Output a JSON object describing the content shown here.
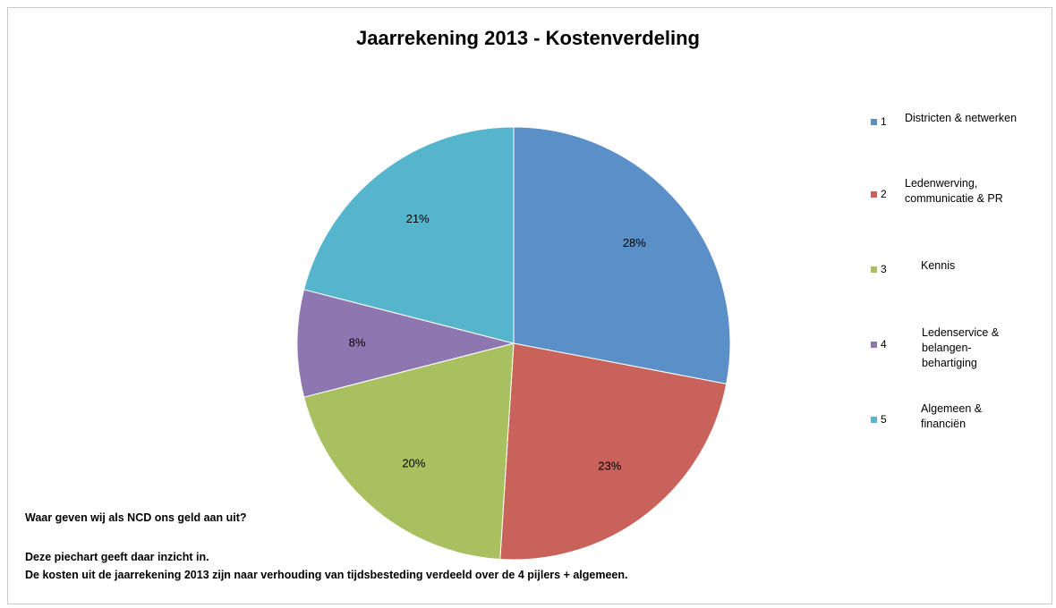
{
  "chart_data": {
    "type": "pie",
    "title": "Jaarrekening 2013 - Kostenverdeling",
    "categories": [
      "1",
      "2",
      "3",
      "4",
      "5"
    ],
    "legend": [
      {
        "number": "1",
        "label": "Districten & netwerken"
      },
      {
        "number": "2",
        "label": "Ledenwerving,\ncommunicatie & PR"
      },
      {
        "number": "3",
        "label": "Kennis"
      },
      {
        "number": "4",
        "label": "Ledenservice &\nbelangen-\nbehartiging"
      },
      {
        "number": "5",
        "label": "Algemeen &\nfinanciën"
      }
    ],
    "values": [
      28,
      23,
      20,
      8,
      21
    ],
    "data_labels": [
      "28%",
      "23%",
      "20%",
      "8%",
      "21%"
    ],
    "colors": [
      "#5b8fc7",
      "#c9625a",
      "#a8c060",
      "#8e76b0",
      "#55b5cc"
    ],
    "legend_position": "right"
  },
  "notes": {
    "question": "Waar geven wij als NCD ons geld aan uit?",
    "line1": "Deze piechart geeft daar inzicht in.",
    "line2": "De kosten uit de jaarrekening 2013 zijn naar verhouding van tijdsbesteding verdeeld over de 4 pijlers + algemeen."
  }
}
